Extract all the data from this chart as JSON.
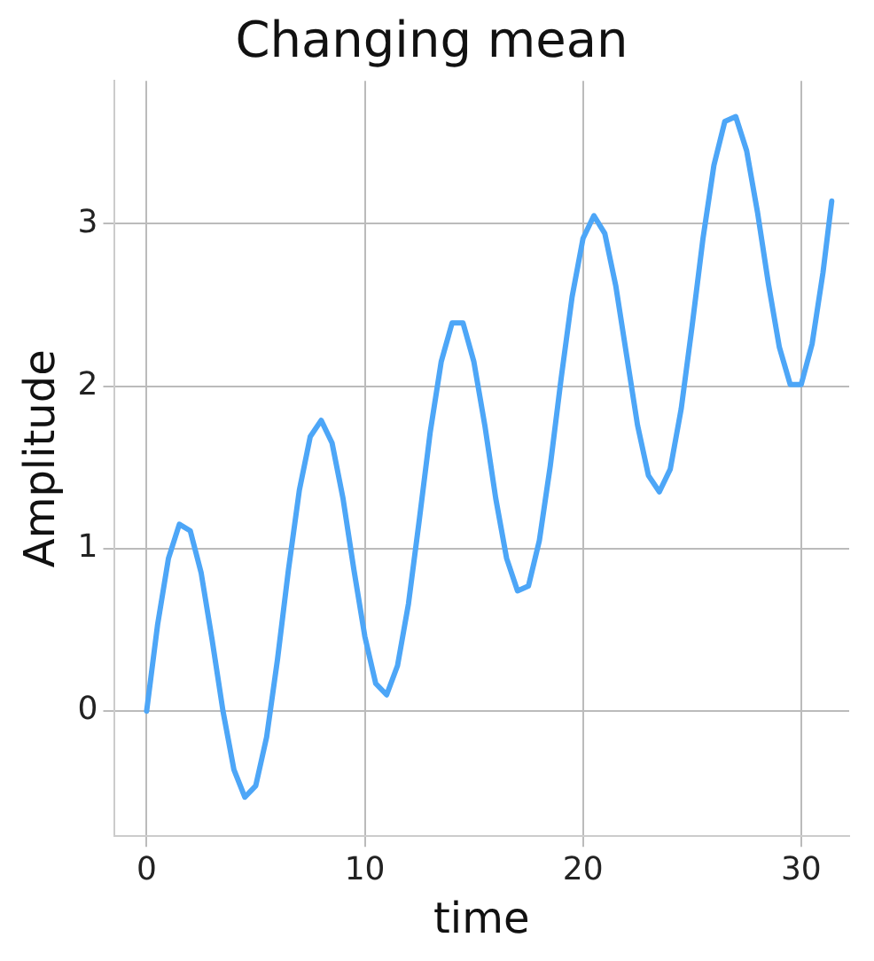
{
  "chart_data": {
    "type": "line",
    "title": "Changing mean",
    "xlabel": "time",
    "ylabel": "Amplitude",
    "x": [
      0,
      0.5,
      1,
      1.5,
      2,
      2.5,
      3,
      3.5,
      4,
      4.5,
      5,
      5.5,
      6,
      6.5,
      7,
      7.5,
      8,
      8.5,
      9,
      9.5,
      10,
      10.5,
      11,
      11.5,
      12,
      12.5,
      13,
      13.5,
      14,
      14.5,
      15,
      15.5,
      16,
      16.5,
      17,
      17.5,
      18,
      18.5,
      19,
      19.5,
      20,
      20.5,
      21,
      21.5,
      22,
      22.5,
      23,
      23.5,
      24,
      24.5,
      25,
      25.5,
      26,
      26.5,
      27,
      27.5,
      28,
      28.5,
      29,
      29.5,
      30,
      30.5,
      31,
      31.4
    ],
    "series": [
      {
        "color": "#4da6f7",
        "values": [
          0,
          0.53,
          0.94,
          1.15,
          1.11,
          0.85,
          0.44,
          0.0,
          -0.36,
          -0.53,
          -0.46,
          -0.16,
          0.32,
          0.87,
          1.36,
          1.69,
          1.79,
          1.65,
          1.31,
          0.87,
          0.46,
          0.17,
          0.1,
          0.28,
          0.66,
          1.18,
          1.72,
          2.15,
          2.39,
          2.39,
          2.15,
          1.76,
          1.31,
          0.94,
          0.74,
          0.77,
          1.05,
          1.51,
          2.05,
          2.55,
          2.91,
          3.05,
          2.94,
          2.62,
          2.19,
          1.76,
          1.45,
          1.35,
          1.49,
          1.86,
          2.37,
          2.91,
          3.36,
          3.63,
          3.66,
          3.45,
          3.07,
          2.63,
          2.24,
          2.01,
          2.01,
          2.26,
          2.7,
          3.14
        ]
      }
    ],
    "xlim": [
      -1.5,
      32.2
    ],
    "xticks": [
      0,
      10,
      20,
      30
    ],
    "ylim": [
      -0.77,
      3.88
    ],
    "yticks": [
      0,
      1,
      2,
      3
    ],
    "grid": true,
    "marker": "none",
    "line_style": "solid"
  }
}
